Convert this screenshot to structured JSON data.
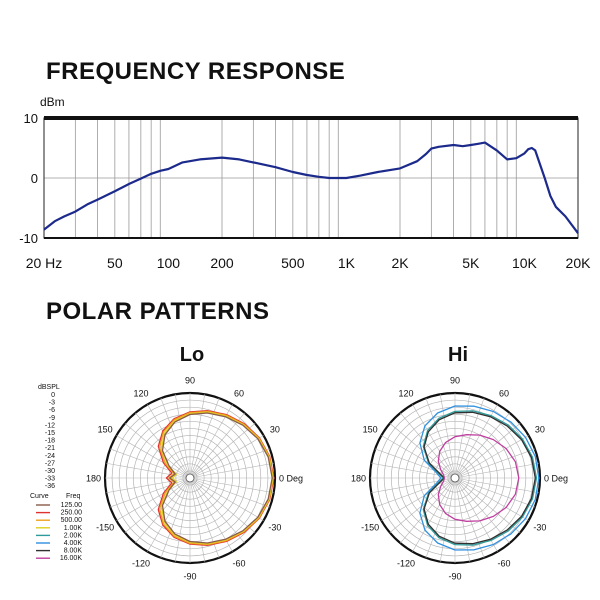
{
  "headings": {
    "frequency_response": "FREQUENCY RESPONSE",
    "polar_patterns": "POLAR PATTERNS"
  },
  "chart_data": [
    {
      "type": "line",
      "title": "FREQUENCY RESPONSE",
      "ylabel": "dBm",
      "xlabel": "",
      "x_scale": "log",
      "xlim": [
        20,
        20000
      ],
      "ylim": [
        -10,
        10
      ],
      "x_tick_labels": [
        "20 Hz",
        "50",
        "100",
        "200",
        "500",
        "1K",
        "2K",
        "5K",
        "10K",
        "20K"
      ],
      "x_tick_values": [
        20,
        50,
        100,
        200,
        500,
        1000,
        2000,
        5000,
        10000,
        20000
      ],
      "y_tick_labels": [
        "10",
        "0",
        "-10"
      ],
      "y_tick_values": [
        10,
        0,
        -10
      ],
      "grid": true,
      "color": "#1c2a8c",
      "series": [
        {
          "x": [
            20,
            23,
            26,
            30,
            35,
            40,
            50,
            60,
            70,
            80,
            90,
            100,
            120,
            150,
            200,
            250,
            300,
            400,
            500,
            600,
            700,
            800,
            1000,
            1200,
            1500,
            2000,
            2500,
            2800,
            3000,
            3300,
            4000,
            4500,
            5000,
            5500,
            6000,
            7000,
            8000,
            9000,
            10000,
            10500,
            11000,
            11500,
            12000,
            13000,
            14000,
            15000,
            17000,
            20000
          ],
          "y": [
            -8.6,
            -7.2,
            -6.4,
            -5.6,
            -4.4,
            -3.6,
            -2.2,
            -1.0,
            -0.1,
            0.7,
            1.2,
            1.5,
            2.6,
            3.1,
            3.4,
            3.1,
            2.6,
            1.8,
            1.0,
            0.5,
            0.2,
            0.0,
            0.0,
            0.4,
            1.0,
            1.6,
            2.8,
            4.0,
            4.9,
            5.2,
            5.5,
            5.3,
            5.5,
            5.7,
            5.9,
            4.6,
            3.1,
            3.3,
            4.1,
            4.8,
            5.0,
            4.6,
            3.0,
            0.0,
            -3.0,
            -4.8,
            -6.4,
            -9.2
          ]
        }
      ]
    },
    {
      "type": "polar",
      "title": "Lo",
      "angle_labels": [
        "90",
        "60",
        "30",
        "0 Deg",
        "-30",
        "-60",
        "-90",
        "-120",
        "-150",
        "180",
        "150",
        "120"
      ],
      "angle_values": [
        90,
        60,
        30,
        0,
        -30,
        -60,
        -90,
        -120,
        -150,
        180,
        150,
        120
      ],
      "radial_unit": "dBSPL",
      "radial_labels": [
        "0",
        "-3",
        "-6",
        "-9",
        "-12",
        "-15",
        "-18",
        "-21",
        "-24",
        "-27",
        "-30",
        "-33",
        "-36"
      ],
      "radial_values": [
        0,
        -3,
        -6,
        -9,
        -12,
        -15,
        -18,
        -21,
        -24,
        -27,
        -30,
        -33,
        -36
      ],
      "rlim": [
        -36,
        0
      ],
      "legend": {
        "position": "left",
        "header_curve": "Curve",
        "header_freq": "Freq",
        "entries": [
          {
            "freq": "125.00",
            "color": "#8a5a4a"
          },
          {
            "freq": "250.00",
            "color": "#e03030"
          },
          {
            "freq": "500.00",
            "color": "#f0a020"
          },
          {
            "freq": "1.00K",
            "color": "#e0d020"
          },
          {
            "freq": "2.00K",
            "color": "#2e9a9a"
          },
          {
            "freq": "4.00K",
            "color": "#3090e0"
          },
          {
            "freq": "8.00K",
            "color": "#303030"
          },
          {
            "freq": "16.00K",
            "color": "#c040a0"
          }
        ]
      },
      "series": [
        {
          "color": "#e03030",
          "angles": [
            0,
            15,
            30,
            45,
            60,
            75,
            90,
            105,
            120,
            135,
            150,
            165,
            180,
            195,
            210,
            225,
            240,
            255,
            270,
            285,
            300,
            315,
            330,
            345
          ],
          "values": [
            -0.5,
            -1,
            -2,
            -3.5,
            -5,
            -6.5,
            -8,
            -10,
            -13,
            -17,
            -23,
            -28,
            -26,
            -28,
            -23,
            -17,
            -13,
            -10,
            -8,
            -6.5,
            -5,
            -3.5,
            -2,
            -1
          ]
        },
        {
          "color": "#f0a020",
          "angles": [
            0,
            15,
            30,
            45,
            60,
            75,
            90,
            105,
            120,
            135,
            150,
            165,
            180,
            195,
            210,
            225,
            240,
            255,
            270,
            285,
            300,
            315,
            330,
            345
          ],
          "values": [
            -0.7,
            -1.2,
            -2.2,
            -3.8,
            -5.3,
            -6.8,
            -8.3,
            -10.4,
            -13.5,
            -17.8,
            -24,
            -29,
            -27,
            -29,
            -24,
            -17.8,
            -13.5,
            -10.4,
            -8.3,
            -6.8,
            -5.3,
            -3.8,
            -2.2,
            -1.2
          ]
        },
        {
          "color": "#e0d020",
          "angles": [
            0,
            15,
            30,
            45,
            60,
            75,
            90,
            105,
            120,
            135,
            150,
            165,
            180,
            195,
            210,
            225,
            240,
            255,
            270,
            285,
            300,
            315,
            330,
            345
          ],
          "values": [
            -0.9,
            -1.4,
            -2.5,
            -4.1,
            -5.7,
            -7.2,
            -8.8,
            -11,
            -14.2,
            -18.8,
            -25.2,
            -30,
            -28.5,
            -30,
            -25.2,
            -18.8,
            -14.2,
            -11,
            -8.8,
            -7.2,
            -5.7,
            -4.1,
            -2.5,
            -1.4
          ]
        },
        {
          "color": "#8a5a4a",
          "angles": [
            0,
            15,
            30,
            45,
            60,
            75,
            90,
            105,
            120,
            135,
            150,
            165,
            180,
            195,
            210,
            225,
            240,
            255,
            270,
            285,
            300,
            315,
            330,
            345
          ],
          "values": [
            -1.2,
            -1.7,
            -2.8,
            -4.4,
            -6,
            -7.5,
            -9.1,
            -11.4,
            -14.8,
            -19.5,
            -25.8,
            -29.5,
            -27.5,
            -29.5,
            -25.8,
            -19.5,
            -14.8,
            -11.4,
            -9.1,
            -7.5,
            -6,
            -4.4,
            -2.8,
            -1.7
          ]
        }
      ]
    },
    {
      "type": "polar",
      "title": "Hi",
      "angle_labels": [
        "90",
        "60",
        "30",
        "0 Deg",
        "-30",
        "-60",
        "-90",
        "-120",
        "-150",
        "180",
        "150",
        "120"
      ],
      "angle_values": [
        90,
        60,
        30,
        0,
        -30,
        -60,
        -90,
        -120,
        -150,
        180,
        150,
        120
      ],
      "rlim": [
        -36,
        0
      ],
      "series": [
        {
          "color": "#3090e0",
          "angles": [
            0,
            15,
            30,
            45,
            60,
            75,
            90,
            105,
            120,
            135,
            150,
            165,
            180,
            195,
            210,
            225,
            240,
            255,
            270,
            285,
            300,
            315,
            330,
            345
          ],
          "values": [
            -0.5,
            -0.8,
            -1.5,
            -2.5,
            -3.5,
            -4.5,
            -5.5,
            -7.5,
            -10.5,
            -15,
            -21,
            -28,
            -30,
            -28,
            -21,
            -15,
            -10.5,
            -7.5,
            -5.5,
            -4.5,
            -3.5,
            -2.5,
            -1.5,
            -0.8
          ]
        },
        {
          "color": "#2e9a9a",
          "angles": [
            0,
            15,
            30,
            45,
            60,
            75,
            90,
            105,
            120,
            135,
            150,
            165,
            180,
            195,
            210,
            225,
            240,
            255,
            270,
            285,
            300,
            315,
            330,
            345
          ],
          "values": [
            -1.5,
            -2,
            -3,
            -4.2,
            -5.5,
            -6.6,
            -7.8,
            -9.8,
            -12.8,
            -17,
            -23,
            -29,
            -31,
            -29,
            -23,
            -17,
            -12.8,
            -9.8,
            -7.8,
            -6.6,
            -5.5,
            -4.2,
            -3,
            -2
          ]
        },
        {
          "color": "#303030",
          "angles": [
            0,
            15,
            30,
            45,
            60,
            75,
            90,
            105,
            120,
            135,
            150,
            165,
            180,
            195,
            210,
            225,
            240,
            255,
            270,
            285,
            300,
            315,
            330,
            345
          ],
          "values": [
            -2,
            -2.5,
            -3.5,
            -4.8,
            -6,
            -7.2,
            -8.4,
            -10.4,
            -13.4,
            -17.5,
            -23.5,
            -29.5,
            -31.5,
            -29.5,
            -23.5,
            -17.5,
            -13.4,
            -10.4,
            -8.4,
            -7.2,
            -6,
            -4.8,
            -3.5,
            -2.5
          ]
        },
        {
          "color": "#c040a0",
          "angles": [
            0,
            15,
            30,
            45,
            60,
            75,
            90,
            105,
            120,
            135,
            150,
            165,
            180,
            195,
            210,
            225,
            240,
            255,
            270,
            285,
            300,
            315,
            330,
            345
          ],
          "values": [
            -9,
            -9.5,
            -11,
            -13,
            -15,
            -17,
            -18.5,
            -20.5,
            -23,
            -26,
            -29,
            -31,
            -31.5,
            -31,
            -29,
            -26,
            -23,
            -20.5,
            -18.5,
            -17,
            -15,
            -13,
            -11,
            -9.5
          ]
        }
      ]
    }
  ]
}
